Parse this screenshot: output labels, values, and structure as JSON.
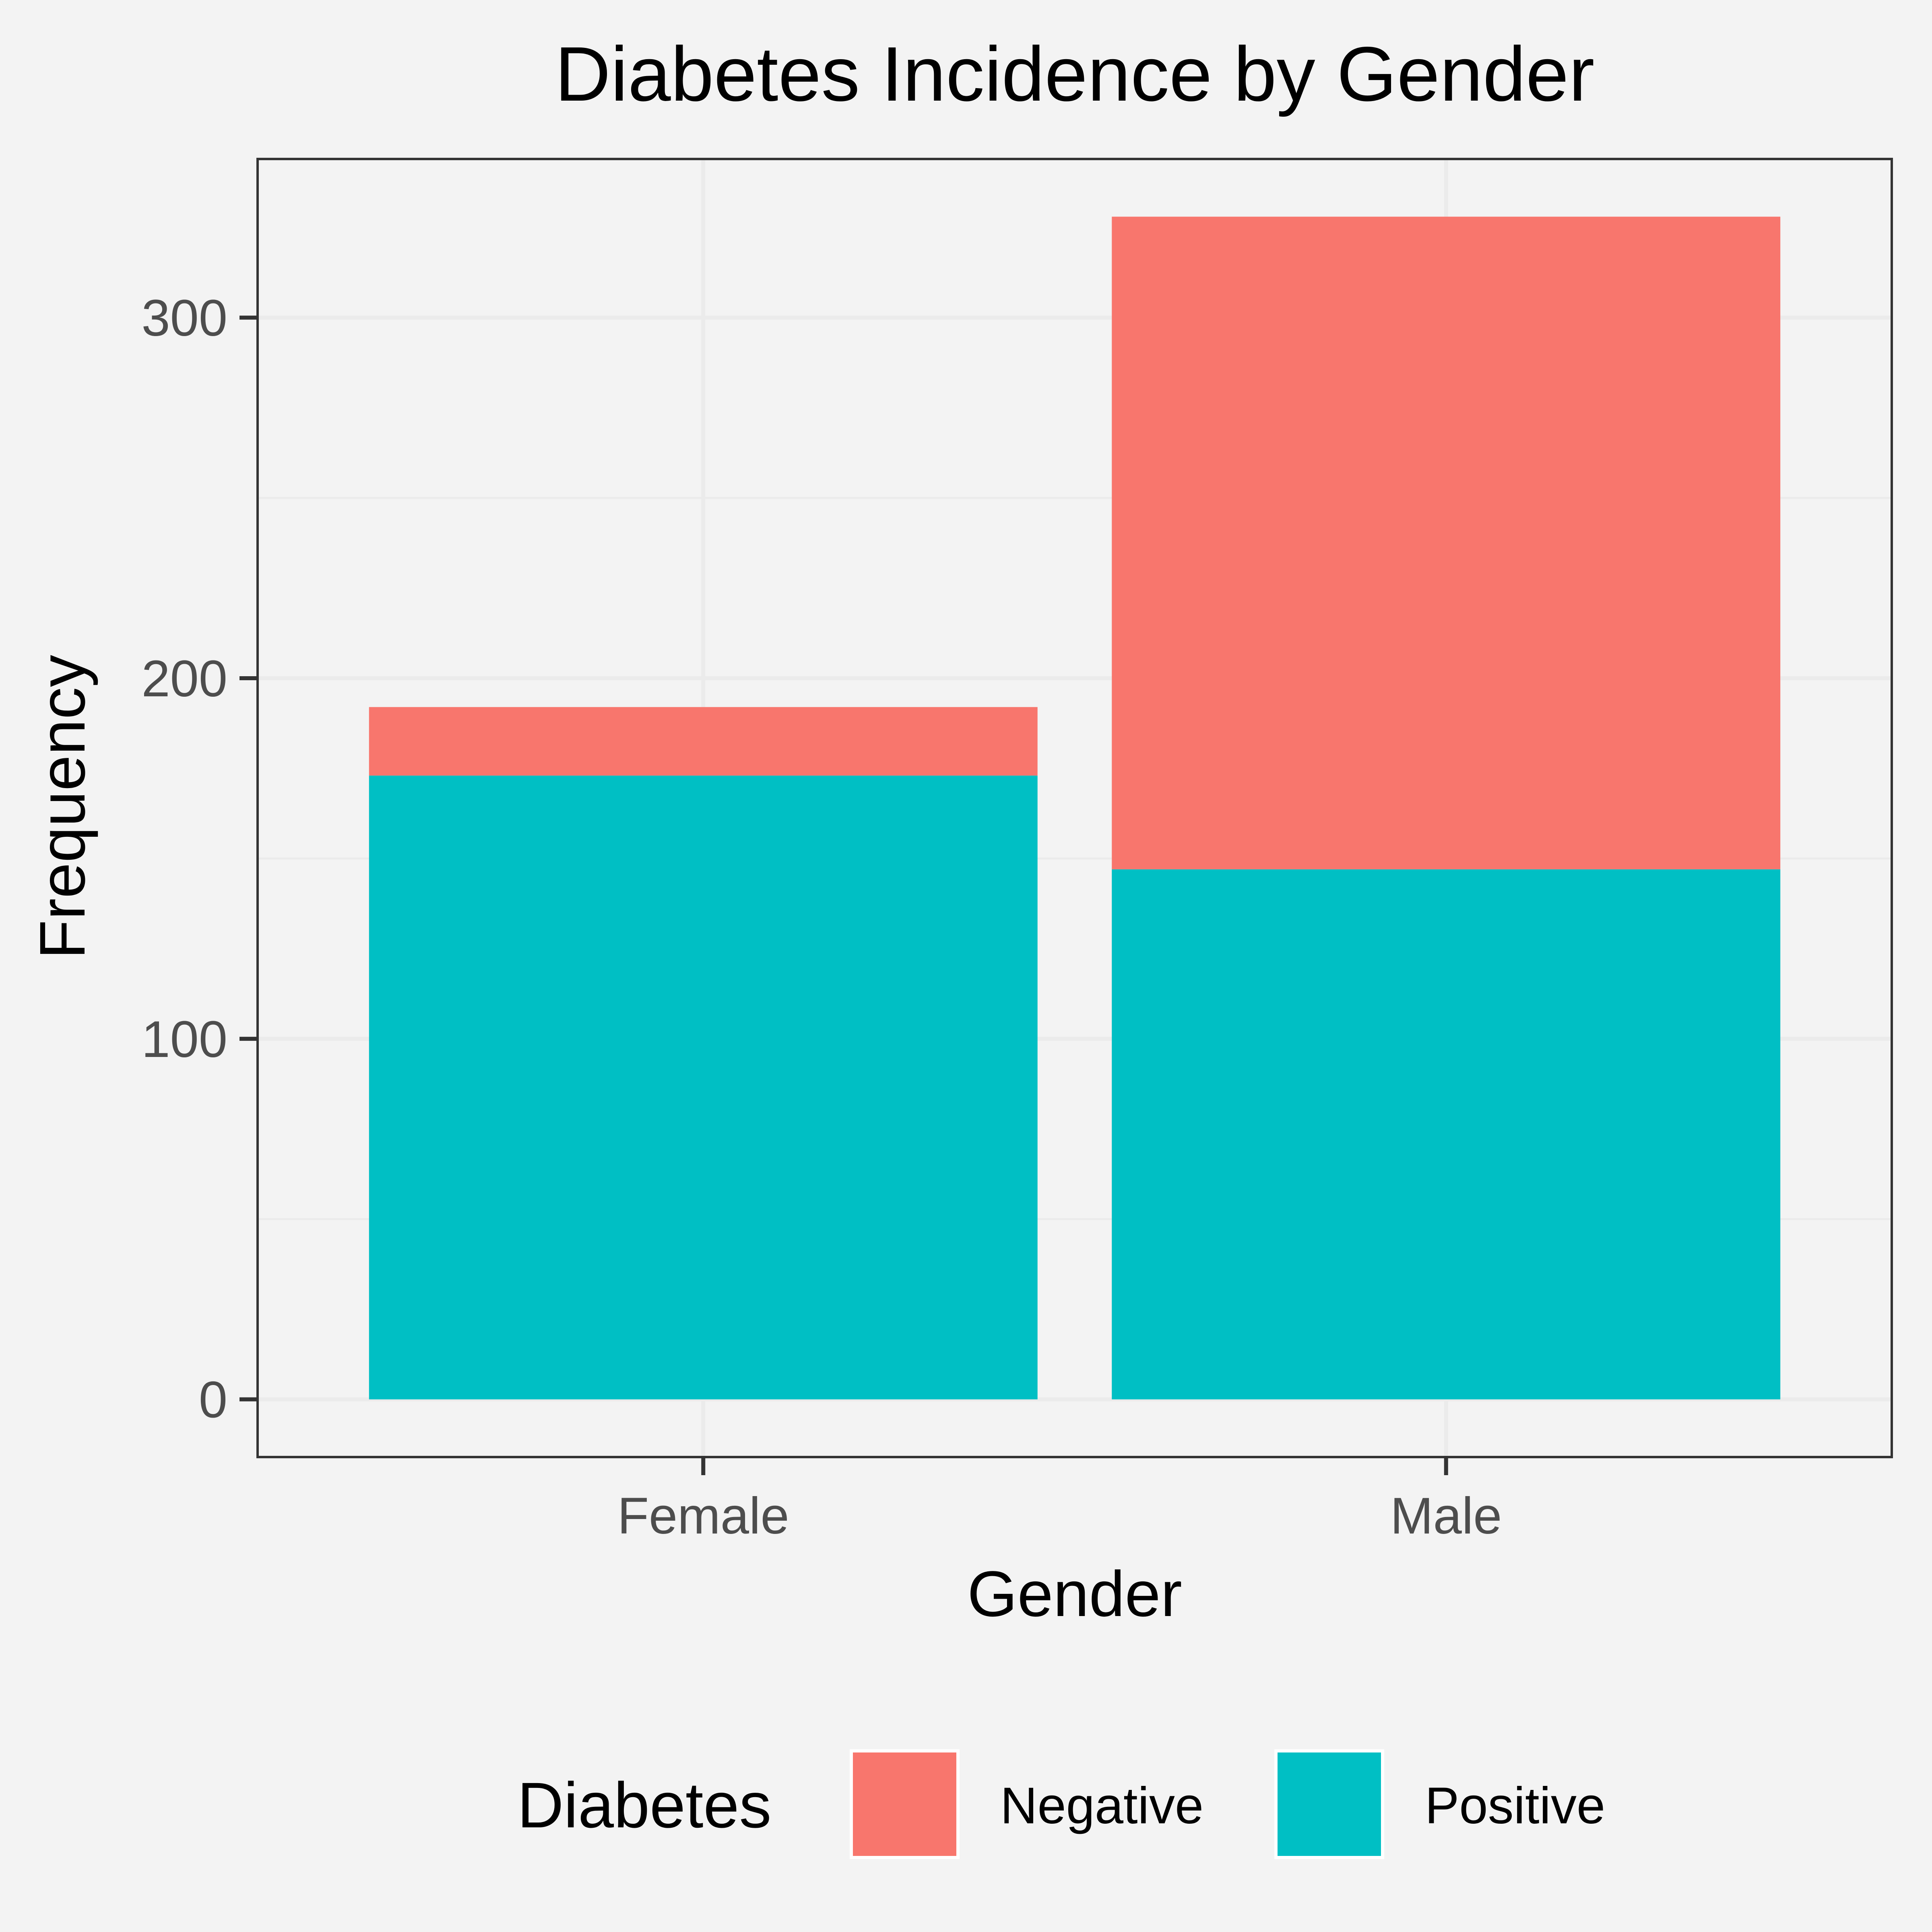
{
  "chart_data": {
    "type": "bar",
    "stacked": true,
    "title": "Diabetes Incidence by Gender",
    "xlabel": "Gender",
    "ylabel": "Frequency",
    "categories": [
      "Female",
      "Male"
    ],
    "series": [
      {
        "name": "Positive",
        "color": "#00BFC4",
        "values": [
          173,
          147
        ]
      },
      {
        "name": "Negative",
        "color": "#F8766D",
        "values": [
          19,
          181
        ]
      }
    ],
    "stack_order_bottom_to_top": [
      "Positive",
      "Negative"
    ],
    "ylim": [
      -16,
      344
    ],
    "yticks": [
      0,
      100,
      200,
      300
    ],
    "yticks_minor": [
      50,
      150,
      250
    ],
    "grid": true,
    "legend": {
      "title": "Diabetes",
      "position": "bottom",
      "entries": [
        "Negative",
        "Positive"
      ]
    },
    "colors": {
      "background": "#f3f3f3",
      "panel": "#f3f3f3",
      "grid": "#ebebeb",
      "border": "#333333"
    }
  }
}
